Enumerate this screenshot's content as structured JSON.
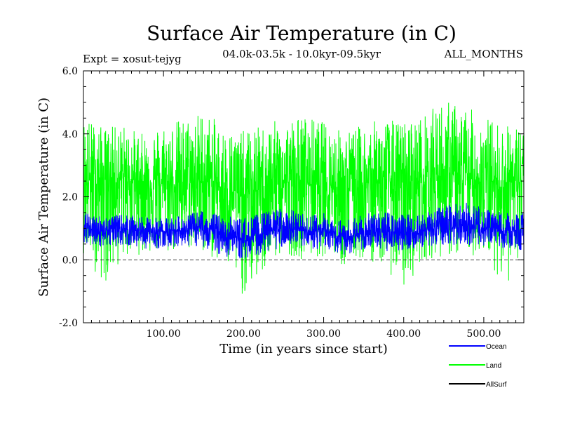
{
  "chart_data": {
    "type": "line",
    "title": "Surface Air Temperature (in C)",
    "subtitle_left": "Expt = xosut-tejyg",
    "subtitle_center": "04.0k-03.5k - 10.0kyr-09.5kyr",
    "subtitle_right": "ALL_MONTHS",
    "xlabel": "Time (in years since start)",
    "ylabel": "Surface Air Temperature (in C)",
    "xlim": [
      0,
      550
    ],
    "ylim": [
      -2.0,
      6.0
    ],
    "x_ticks": [
      100,
      200,
      300,
      400,
      500
    ],
    "x_tick_labels": [
      "100.00",
      "200.00",
      "300.00",
      "400.00",
      "500.00"
    ],
    "y_ticks": [
      -2,
      0,
      2,
      4,
      6
    ],
    "y_tick_labels": [
      "-2.0",
      "0.0",
      "2.0",
      "4.0",
      "6.0"
    ],
    "zero_line": true,
    "series": [
      {
        "name": "Land",
        "color": "#00ff00",
        "x": [
          0,
          25,
          50,
          75,
          100,
          125,
          150,
          175,
          200,
          225,
          250,
          275,
          300,
          325,
          350,
          375,
          400,
          425,
          450,
          475,
          500,
          525,
          550
        ],
        "mean": [
          2.5,
          2.55,
          2.6,
          2.5,
          2.4,
          2.45,
          2.5,
          2.3,
          2.0,
          2.3,
          2.5,
          2.45,
          2.5,
          2.3,
          2.4,
          2.5,
          2.45,
          2.55,
          2.7,
          2.6,
          2.5,
          2.45,
          2.5
        ],
        "max": [
          4.6,
          4.2,
          4.3,
          4.0,
          4.4,
          4.5,
          4.8,
          4.2,
          4.1,
          4.3,
          4.5,
          4.6,
          4.4,
          4.1,
          4.3,
          4.5,
          4.4,
          4.6,
          5.1,
          4.9,
          4.6,
          4.3,
          4.3
        ],
        "min": [
          0.2,
          -0.8,
          0.0,
          0.2,
          0.1,
          0.3,
          0.2,
          -0.2,
          -1.2,
          -0.5,
          0.2,
          0.0,
          0.1,
          -0.3,
          0.0,
          -0.2,
          -1.0,
          0.0,
          0.1,
          0.0,
          0.2,
          -0.8,
          -0.5
        ]
      },
      {
        "name": "Ocean",
        "color": "#0000ff",
        "x": [
          0,
          25,
          50,
          75,
          100,
          125,
          150,
          175,
          200,
          225,
          250,
          275,
          300,
          325,
          350,
          375,
          400,
          425,
          450,
          475,
          500,
          525,
          550
        ],
        "mean": [
          1.0,
          0.95,
          1.0,
          0.9,
          0.9,
          0.95,
          1.0,
          0.85,
          0.6,
          0.85,
          1.0,
          0.9,
          0.9,
          0.7,
          0.85,
          0.9,
          0.85,
          0.9,
          1.05,
          1.1,
          0.95,
          0.9,
          0.95
        ],
        "max": [
          1.5,
          1.4,
          1.45,
          1.35,
          1.35,
          1.4,
          1.6,
          1.4,
          1.35,
          1.5,
          1.7,
          1.45,
          1.5,
          1.25,
          1.45,
          1.55,
          1.45,
          1.55,
          1.7,
          1.85,
          1.65,
          1.5,
          1.5
        ],
        "min": [
          0.5,
          0.4,
          0.45,
          0.35,
          0.35,
          0.45,
          0.4,
          0.1,
          0.0,
          0.2,
          0.4,
          0.3,
          0.35,
          0.15,
          0.3,
          0.25,
          0.3,
          0.4,
          0.45,
          0.5,
          0.4,
          0.35,
          0.3
        ]
      },
      {
        "name": "AllSurf",
        "color": "#000000",
        "x": [],
        "mean": [],
        "max": [],
        "min": []
      }
    ],
    "legend": [
      {
        "label": "Ocean",
        "color": "#0000ff"
      },
      {
        "label": "Land",
        "color": "#00ff00"
      },
      {
        "label": "AllSurf",
        "color": "#000000"
      }
    ]
  }
}
